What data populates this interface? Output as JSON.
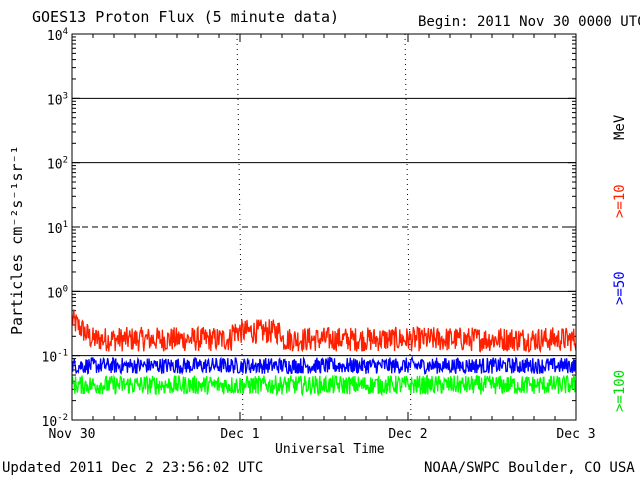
{
  "chart_data": {
    "type": "line",
    "title": "GOES13 Proton Flux (5 minute data)",
    "begin_label": "Begin: 2011 Nov 30 0000 UTC",
    "xlabel": "Universal Time",
    "ylabel": "Particles cm⁻²s⁻¹sr⁻¹",
    "y_scale": "log",
    "ylim": [
      0.01,
      10000
    ],
    "y_ticks": [
      {
        "value": 10000,
        "base": "10",
        "exp": "4"
      },
      {
        "value": 1000,
        "base": "10",
        "exp": "3"
      },
      {
        "value": 100,
        "base": "10",
        "exp": "2"
      },
      {
        "value": 10,
        "base": "10",
        "exp": "1"
      },
      {
        "value": 1,
        "base": "10",
        "exp": "0"
      },
      {
        "value": 0.1,
        "base": "10",
        "exp": "-1"
      },
      {
        "value": 0.01,
        "base": "10",
        "exp": "-2"
      }
    ],
    "solid_threshold_lines": [
      1000,
      100,
      1,
      0.1
    ],
    "dashed_threshold_lines": [
      10
    ],
    "x_ticks": [
      "Nov 30",
      "Dec 1",
      "Dec 2",
      "Dec 3"
    ],
    "xlim_days": [
      0,
      3
    ],
    "grid": false,
    "series": [
      {
        "name": ">=10",
        "color": "#ff2000",
        "typical": 0.18,
        "min": 0.11,
        "max": 0.55
      },
      {
        "name": ">=50",
        "color": "#0000ff",
        "typical": 0.07,
        "min": 0.045,
        "max": 0.13
      },
      {
        "name": ">=100",
        "color": "#00ff00",
        "typical": 0.035,
        "min": 0.02,
        "max": 0.07
      }
    ],
    "legend_unit": "MeV",
    "legend_placement": "right"
  },
  "footer": {
    "updated": "Updated 2011 Dec  2 23:56:02 UTC",
    "source": "NOAA/SWPC Boulder, CO USA"
  },
  "colors": {
    "frame": "#000000",
    "background": "#ffffff"
  }
}
